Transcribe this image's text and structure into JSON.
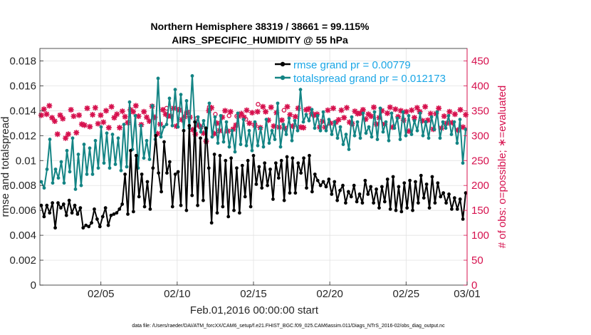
{
  "chart_data": {
    "type": "line",
    "title": "Northern Hemisphere 38319 / 38661 = 99.115%",
    "subtitle": "AIRS_SPECIFIC_HUMIDITY @ 55 hPa",
    "xlabel": "Feb.01,2016 00:00:00 start",
    "ylabel_left": "rmse and totalspread",
    "ylabel_right": "# of obs: o=possible; ∗=evaluated",
    "footnote": "data file: /Users/raeder/DAI/ATM_forcXX/CAM6_setup/f.e21.FHIST_BGC.f09_025.CAM6assim.011/Diags_NTrS_2016-02/obs_diag_output.nc",
    "x_range": [
      1,
      29
    ],
    "x_ticks": [
      5,
      10,
      15,
      20,
      25,
      29
    ],
    "x_tick_labels": [
      "02/05",
      "02/10",
      "02/15",
      "02/20",
      "02/25",
      "03/01"
    ],
    "ylim_left": [
      0,
      0.019
    ],
    "y_ticks_left": [
      0,
      0.002,
      0.004,
      0.006,
      0.008,
      0.01,
      0.012,
      0.014,
      0.016,
      0.018
    ],
    "y_tick_labels_left": [
      "0",
      "0.002",
      "0.004",
      "0.006",
      "0.008",
      "0.01",
      "0.012",
      "0.014",
      "0.016",
      "0.018"
    ],
    "ylim_right": [
      0,
      475
    ],
    "y_ticks_right": [
      0,
      50,
      100,
      150,
      200,
      250,
      300,
      350,
      400,
      450
    ],
    "y_tick_labels_right": [
      "0",
      "50",
      "100",
      "150",
      "200",
      "250",
      "300",
      "350",
      "400",
      "450"
    ],
    "colors": {
      "rmse": "#000000",
      "spread": "#138484",
      "obs": "#d6104d",
      "legend_text": "#1aa6e6",
      "frame": "#262626"
    },
    "series": [
      {
        "name": "rmse grand pr = 0.00779",
        "key": "rmse",
        "values": [
          0.0064,
          0.0055,
          0.0064,
          0.0058,
          0.0066,
          0.0046,
          0.0066,
          0.0062,
          0.0065,
          0.0056,
          0.0068,
          0.0058,
          0.0064,
          0.0057,
          0.0062,
          0.0046,
          0.0048,
          0.0047,
          0.005,
          0.0061,
          0.0053,
          0.0047,
          0.0055,
          0.0062,
          0.0048,
          0.0056,
          0.0057,
          0.0058,
          0.0061,
          0.0065,
          0.0089,
          0.0057,
          0.0108,
          0.0059,
          0.0104,
          0.0071,
          0.0089,
          0.0063,
          0.0083,
          0.0061,
          0.0094,
          0.012,
          0.009,
          0.0075,
          0.0115,
          0.009,
          0.0099,
          0.0063,
          0.0089,
          0.0091,
          0.0064,
          0.0124,
          0.006,
          0.0128,
          0.0072,
          0.0131,
          0.0064,
          0.0118,
          0.0068,
          0.0126,
          0.0094,
          0.005,
          0.0105,
          0.0058,
          0.0104,
          0.0063,
          0.01,
          0.0055,
          0.0102,
          0.006,
          0.0094,
          0.0058,
          0.0096,
          0.0071,
          0.01,
          0.0063,
          0.0104,
          0.0081,
          0.0095,
          0.0078,
          0.0098,
          0.008,
          0.0093,
          0.0069,
          0.0098,
          0.0086,
          0.01,
          0.0068,
          0.0103,
          0.0074,
          0.0102,
          0.0074,
          0.0098,
          0.009,
          0.0102,
          0.0078,
          0.0104,
          0.0075,
          0.0089,
          0.0084,
          0.008,
          0.0083,
          0.0079,
          0.0085,
          0.0073,
          0.0083,
          0.0068,
          0.0076,
          0.008,
          0.0066,
          0.0075,
          0.0071,
          0.008,
          0.0067,
          0.0073,
          0.0066,
          0.0084,
          0.0073,
          0.0079,
          0.0066,
          0.0077,
          0.0062,
          0.0079,
          0.0067,
          0.0085,
          0.0061,
          0.0087,
          0.006,
          0.0079,
          0.0059,
          0.0082,
          0.0062,
          0.0084,
          0.006,
          0.0083,
          0.0066,
          0.0088,
          0.007,
          0.0081,
          0.0062,
          0.0087,
          0.0066,
          0.0082,
          0.0071,
          0.0074,
          0.0066,
          0.0073,
          0.0061,
          0.007,
          0.0061,
          0.0069,
          0.0053,
          0.0074
        ]
      },
      {
        "name": "totalspread grand pr = 0.012173",
        "key": "spread",
        "values": [
          0.0083,
          0.0078,
          0.0093,
          0.0117,
          0.0082,
          0.0093,
          0.0086,
          0.0099,
          0.0082,
          0.0108,
          0.0091,
          0.0118,
          0.0077,
          0.0105,
          0.008,
          0.0113,
          0.0089,
          0.011,
          0.0089,
          0.0116,
          0.0094,
          0.0127,
          0.0098,
          0.0122,
          0.0094,
          0.0121,
          0.0097,
          0.0118,
          0.0092,
          0.0129,
          0.0095,
          0.0147,
          0.0109,
          0.0136,
          0.0094,
          0.0128,
          0.0102,
          0.0116,
          0.0101,
          0.0144,
          0.0117,
          0.0166,
          0.0119,
          0.0127,
          0.0129,
          0.015,
          0.0128,
          0.0157,
          0.0127,
          0.0153,
          0.0124,
          0.0148,
          0.0126,
          0.0168,
          0.0124,
          0.0135,
          0.0123,
          0.0132,
          0.0117,
          0.0146,
          0.0119,
          0.0135,
          0.0114,
          0.0136,
          0.0115,
          0.0131,
          0.0111,
          0.0124,
          0.0107,
          0.0138,
          0.0113,
          0.0133,
          0.0112,
          0.0124,
          0.0108,
          0.0131,
          0.0112,
          0.0126,
          0.0111,
          0.0133,
          0.0114,
          0.0124,
          0.0117,
          0.0146,
          0.0111,
          0.0129,
          0.0121,
          0.0134,
          0.0116,
          0.0132,
          0.0124,
          0.0157,
          0.0131,
          0.0137,
          0.0132,
          0.0141,
          0.0126,
          0.0136,
          0.0124,
          0.0139,
          0.0124,
          0.0133,
          0.0121,
          0.0131,
          0.0118,
          0.0127,
          0.0113,
          0.0121,
          0.0109,
          0.0135,
          0.012,
          0.0131,
          0.0118,
          0.0138,
          0.0122,
          0.0127,
          0.0119,
          0.0139,
          0.0117,
          0.0142,
          0.0123,
          0.0131,
          0.0116,
          0.0138,
          0.0126,
          0.0134,
          0.0117,
          0.0139,
          0.012,
          0.0136,
          0.0121,
          0.0132,
          0.0124,
          0.0138,
          0.012,
          0.0131,
          0.0118,
          0.0135,
          0.0125,
          0.0139,
          0.0118,
          0.0131,
          0.0126,
          0.0136,
          0.0121,
          0.0131,
          0.0114,
          0.0133,
          0.0098,
          0.0125
        ]
      }
    ],
    "obs_evaluated": [
      341,
      353,
      343,
      360,
      336,
      329,
      303,
      341,
      334,
      295,
      303,
      352,
      339,
      306,
      341,
      323,
      321,
      355,
      318,
      342,
      356,
      324,
      341,
      327,
      350,
      316,
      358,
      336,
      343,
      316,
      349,
      338,
      326,
      352,
      348,
      360,
      339,
      322,
      348,
      337,
      329,
      359,
      337,
      304,
      323,
      352,
      343,
      340,
      339,
      355,
      319,
      351,
      332,
      338,
      347,
      337,
      312,
      303,
      321,
      318,
      305,
      289,
      350,
      356,
      304,
      325,
      310,
      337,
      350,
      309,
      348,
      313,
      321,
      339,
      344,
      337,
      351,
      325,
      346,
      321,
      348,
      316,
      358,
      348,
      331,
      357,
      319,
      346,
      317,
      331,
      315,
      358,
      342,
      319,
      338,
      355,
      317,
      316,
      352,
      354,
      344,
      341,
      343,
      317,
      329,
      317,
      351,
      325,
      355,
      327,
      332,
      351,
      336,
      356,
      327,
      324,
      349,
      344,
      345,
      352,
      333,
      343,
      339,
      357,
      323,
      336,
      350,
      323,
      345,
      357,
      317,
      353,
      338,
      350,
      331,
      348,
      309,
      351,
      336,
      356,
      348,
      330,
      358,
      331,
      344,
      313,
      344,
      355,
      315,
      339,
      325,
      348,
      326,
      343,
      311,
      352,
      317,
      342
    ],
    "obs_possible": [
      [
        9.3,
        355
      ],
      [
        10.1,
        353
      ],
      [
        10.6,
        346
      ],
      [
        11.3,
        335
      ],
      [
        12.1,
        357
      ],
      [
        12.5,
        343
      ],
      [
        13.4,
        340
      ],
      [
        13.9,
        339
      ],
      [
        14.5,
        333
      ],
      [
        15.3,
        363
      ],
      [
        17.0,
        351
      ]
    ]
  }
}
